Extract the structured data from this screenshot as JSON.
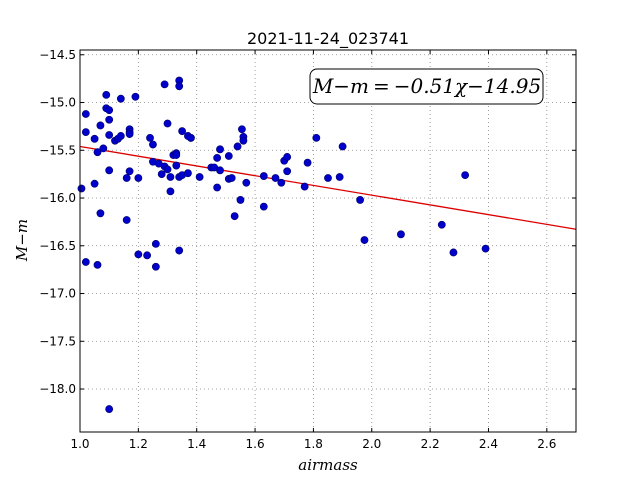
{
  "chart_data": {
    "type": "scatter",
    "title": "2021-11-24_023741",
    "xlabel": "airmass",
    "ylabel": "M−m",
    "xlim": [
      1.0,
      2.7
    ],
    "ylim": [
      -18.45,
      -14.45
    ],
    "y_inverted": true,
    "grid": true,
    "x_ticks": [
      1.0,
      1.2,
      1.4,
      1.6,
      1.8,
      2.0,
      2.2,
      2.4,
      2.6
    ],
    "x_tick_labels": [
      "1.0",
      "1.2",
      "1.4",
      "1.6",
      "1.8",
      "2.0",
      "2.2",
      "2.4",
      "2.6"
    ],
    "y_ticks": [
      -14.5,
      -15.0,
      -15.5,
      -16.0,
      -16.5,
      -17.0,
      -17.5,
      -18.0
    ],
    "y_tick_labels": [
      "−14.5",
      "−15.0",
      "−15.5",
      "−16.0",
      "−16.5",
      "−17.0",
      "−17.5",
      "−18.0"
    ],
    "annotation": "M−m = −0.51χ−14.95",
    "colors": {
      "points": "#0000cc",
      "fit_line": "#dd0000",
      "grid": "#888888"
    },
    "fit_line": {
      "slope": -0.51,
      "intercept": -14.95,
      "x_range": [
        1.0,
        2.7
      ]
    },
    "series": [
      {
        "kind": "points",
        "x": [
          1.005,
          1.02,
          1.02,
          1.02,
          1.05,
          1.05,
          1.06,
          1.06,
          1.07,
          1.07,
          1.08,
          1.09,
          1.09,
          1.1,
          1.1,
          1.1,
          1.1,
          1.1,
          1.12,
          1.13,
          1.14,
          1.14,
          1.16,
          1.16,
          1.17,
          1.17,
          1.17,
          1.17,
          1.19,
          1.2,
          1.2,
          1.23,
          1.24,
          1.25,
          1.25,
          1.26,
          1.26,
          1.27,
          1.28,
          1.29,
          1.29,
          1.3,
          1.3,
          1.31,
          1.31,
          1.32,
          1.33,
          1.33,
          1.33,
          1.34,
          1.34,
          1.34,
          1.34,
          1.35,
          1.35,
          1.37,
          1.37,
          1.38,
          1.38,
          1.41,
          1.45,
          1.46,
          1.47,
          1.47,
          1.48,
          1.48,
          1.51,
          1.51,
          1.52,
          1.53,
          1.54,
          1.55,
          1.555,
          1.56,
          1.56,
          1.57,
          1.63,
          1.63,
          1.67,
          1.69,
          1.7,
          1.71,
          1.71,
          1.77,
          1.78,
          1.81,
          1.85,
          1.89,
          1.9,
          1.96,
          1.975,
          2.1,
          2.24,
          2.28,
          2.32,
          2.39
        ],
        "y": [
          -15.9,
          -15.12,
          -15.31,
          -16.67,
          -15.85,
          -15.38,
          -15.52,
          -16.7,
          -15.24,
          -16.16,
          -15.48,
          -15.06,
          -14.92,
          -15.08,
          -15.18,
          -15.34,
          -15.71,
          -18.21,
          -15.4,
          -15.38,
          -14.96,
          -15.35,
          -15.79,
          -16.23,
          -15.72,
          -15.28,
          -15.31,
          -15.33,
          -14.94,
          -16.59,
          -15.79,
          -16.6,
          -15.37,
          -15.44,
          -15.62,
          -16.48,
          -16.72,
          -15.64,
          -15.75,
          -14.81,
          -15.67,
          -15.7,
          -15.22,
          -15.93,
          -15.78,
          -15.55,
          -15.53,
          -15.55,
          -15.66,
          -14.77,
          -14.83,
          -15.78,
          -16.55,
          -15.3,
          -15.76,
          -15.74,
          -15.35,
          -15.37,
          -15.37,
          -15.78,
          -15.68,
          -15.68,
          -15.58,
          -15.89,
          -15.49,
          -15.71,
          -15.56,
          -15.8,
          -15.79,
          -16.19,
          -15.46,
          -16.02,
          -15.28,
          -15.36,
          -15.4,
          -15.84,
          -15.77,
          -16.09,
          -15.79,
          -15.84,
          -15.61,
          -15.57,
          -15.72,
          -15.88,
          -15.63,
          -15.37,
          -15.79,
          -15.78,
          -15.46,
          -16.02,
          -16.44,
          -16.38,
          -16.28,
          -16.57,
          -15.76,
          -16.53
        ]
      }
    ]
  }
}
